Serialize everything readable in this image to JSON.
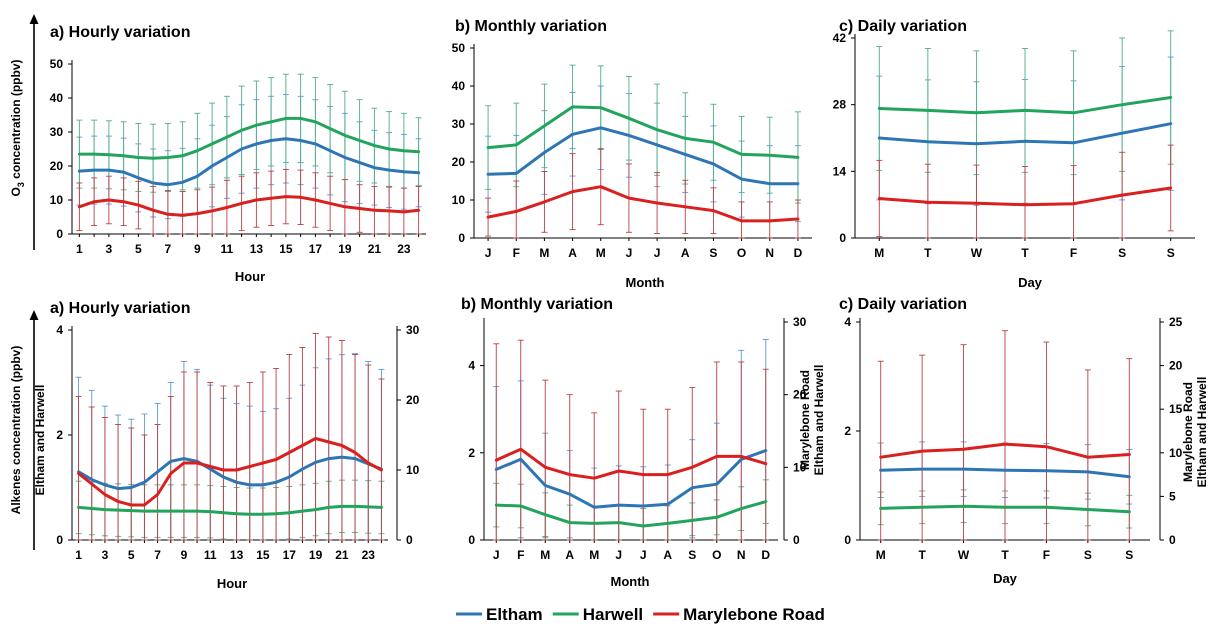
{
  "colors": {
    "Eltham": "#2e75b6",
    "Harwell": "#22a45c",
    "Marylebone Road": "#d9201f",
    "err_Eltham": "#5b9bd5",
    "err_Harwell": "#4fae86",
    "err_Marylebone Road": "#b94040"
  },
  "legend": {
    "placement": "bottom-center",
    "items": [
      "Eltham",
      "Harwell",
      "Marylebone Road"
    ]
  },
  "chart_data": [
    {
      "type": "line",
      "title": "a) Hourly variation",
      "xlabel": "Hour",
      "ylabel": "O3 concentration  (ppbv)",
      "ylabel_parts": [
        "O",
        "3",
        " concentration  (ppbv)"
      ],
      "x": [
        1,
        2,
        3,
        4,
        5,
        6,
        7,
        8,
        9,
        10,
        11,
        12,
        13,
        14,
        15,
        16,
        17,
        18,
        19,
        20,
        21,
        22,
        23,
        24
      ],
      "xticks": [
        "1",
        "3",
        "5",
        "7",
        "9",
        "11",
        "13",
        "15",
        "17",
        "19",
        "21",
        "23"
      ],
      "ylim": [
        0,
        50
      ],
      "yticks": [
        "0",
        "10",
        "20",
        "30",
        "40",
        "50"
      ],
      "series": [
        {
          "name": "Eltham",
          "axis": "left",
          "values": [
            18.5,
            18.8,
            18.8,
            18.2,
            16.5,
            15,
            14.5,
            15.2,
            17,
            20,
            22.5,
            25,
            26.5,
            27.5,
            28,
            27.5,
            26.5,
            24.5,
            22.5,
            21,
            19.5,
            18.8,
            18.3,
            18
          ],
          "err": [
            10,
            10,
            10,
            10,
            10,
            10,
            10,
            10,
            11,
            12,
            12,
            13,
            13,
            13,
            13,
            13,
            13,
            13,
            13,
            12,
            11,
            11,
            11,
            10
          ]
        },
        {
          "name": "Harwell",
          "axis": "left",
          "values": [
            23.5,
            23.5,
            23.3,
            23,
            22.5,
            22.3,
            22.5,
            23,
            24.5,
            26.5,
            28.5,
            30.5,
            32,
            33,
            34,
            34,
            33,
            31,
            29,
            27.5,
            26,
            25,
            24.5,
            24.2
          ],
          "err": [
            10,
            10,
            10,
            10,
            10,
            10,
            10,
            10,
            11,
            12,
            12,
            13,
            13,
            13,
            13,
            13,
            13,
            13,
            13,
            12,
            11,
            11,
            11,
            10
          ]
        },
        {
          "name": "Marylebone Road",
          "axis": "left",
          "values": [
            8,
            9.5,
            10,
            9.5,
            8.5,
            7,
            5.8,
            5.5,
            6,
            6.8,
            7.8,
            9,
            10,
            10.5,
            11,
            10.8,
            10,
            9,
            8,
            7.5,
            7,
            6.8,
            6.5,
            7
          ],
          "err": [
            7,
            7,
            7,
            7,
            7,
            7,
            7,
            7,
            7,
            7,
            8,
            8,
            8,
            8,
            8,
            8,
            8,
            8,
            8,
            7,
            7,
            7,
            7,
            7
          ]
        }
      ]
    },
    {
      "type": "line",
      "title": "b) Monthly variation",
      "xlabel": "Month",
      "ylabel": "",
      "x": [
        "J",
        "F",
        "M",
        "A",
        "M",
        "J",
        "J",
        "A",
        "S",
        "O",
        "N",
        "D"
      ],
      "xticks": [
        "J",
        "F",
        "M",
        "A",
        "M",
        "J",
        "J",
        "A",
        "S",
        "O",
        "N",
        "D"
      ],
      "ylim": [
        0,
        50
      ],
      "yticks": [
        "0",
        "10",
        "20",
        "30",
        "40",
        "50"
      ],
      "series": [
        {
          "name": "Eltham",
          "axis": "left",
          "values": [
            16.8,
            17,
            22.5,
            27.3,
            29,
            27,
            24.5,
            22,
            19.5,
            15.5,
            14.3,
            14.3
          ],
          "err": [
            10,
            10,
            11,
            11,
            11,
            11,
            11,
            10,
            10,
            10,
            10,
            10
          ]
        },
        {
          "name": "Harwell",
          "axis": "left",
          "values": [
            23.8,
            24.5,
            29.5,
            34.5,
            34.3,
            31.5,
            28.5,
            26.2,
            25.2,
            22,
            21.8,
            21.2
          ],
          "err": [
            11,
            11,
            11,
            11,
            11,
            11,
            12,
            12,
            10,
            10,
            10,
            12
          ]
        },
        {
          "name": "Marylebone Road",
          "axis": "left",
          "values": [
            5.5,
            7,
            9.5,
            12.2,
            13.5,
            10.5,
            9.2,
            8.2,
            7.2,
            4.5,
            4.5,
            5
          ],
          "err": [
            5,
            8,
            8,
            10,
            10,
            9,
            8,
            7,
            6,
            5,
            5,
            5
          ]
        }
      ]
    },
    {
      "type": "line",
      "title": "c) Daily variation",
      "xlabel": "Day",
      "ylabel": "",
      "x": [
        "M",
        "T",
        "W",
        "T",
        "F",
        "S",
        "S"
      ],
      "xticks": [
        "M",
        "T",
        "W",
        "T",
        "F",
        "S",
        "S"
      ],
      "ylim": [
        0,
        42
      ],
      "yticks": [
        "0",
        "14",
        "28",
        "42"
      ],
      "series": [
        {
          "name": "Eltham",
          "axis": "left",
          "values": [
            21,
            20.2,
            19.8,
            20.3,
            20,
            22,
            24
          ],
          "err": [
            13,
            13,
            13,
            13,
            13,
            14,
            14
          ]
        },
        {
          "name": "Harwell",
          "axis": "left",
          "values": [
            27.2,
            26.8,
            26.3,
            26.8,
            26.3,
            28,
            29.5
          ],
          "err": [
            13,
            13,
            13,
            13,
            13,
            14,
            14
          ]
        },
        {
          "name": "Marylebone Road",
          "axis": "left",
          "values": [
            8.3,
            7.5,
            7.3,
            7,
            7.2,
            9,
            10.5
          ],
          "err": [
            8,
            8,
            8,
            8,
            8,
            9,
            9
          ]
        }
      ]
    },
    {
      "type": "line",
      "title": "a) Hourly variation",
      "xlabel": "Hour",
      "ylabel": "Alkenes concentration  (ppbv)",
      "ylabel2": "Eltham and Harwell",
      "x": [
        1,
        2,
        3,
        4,
        5,
        6,
        7,
        8,
        9,
        10,
        11,
        12,
        13,
        14,
        15,
        16,
        17,
        18,
        19,
        20,
        21,
        22,
        23,
        24
      ],
      "xticks": [
        "1",
        "3",
        "5",
        "7",
        "9",
        "11",
        "13",
        "15",
        "17",
        "19",
        "21",
        "23"
      ],
      "ylim": [
        0,
        4
      ],
      "yticks": [
        "0",
        "2",
        "4"
      ],
      "ylim_right": [
        0,
        30
      ],
      "yticks_right": [
        "0",
        "10",
        "20",
        "30"
      ],
      "series": [
        {
          "name": "Eltham",
          "axis": "left",
          "values": [
            1.3,
            1.15,
            1.05,
            0.98,
            1,
            1.1,
            1.3,
            1.5,
            1.55,
            1.5,
            1.35,
            1.2,
            1.1,
            1.05,
            1.05,
            1.1,
            1.2,
            1.35,
            1.48,
            1.55,
            1.58,
            1.55,
            1.45,
            1.35
          ],
          "err": [
            1.8,
            1.7,
            1.5,
            1.4,
            1.3,
            1.3,
            1.3,
            1.5,
            1.85,
            1.75,
            1.6,
            1.5,
            1.5,
            1.5,
            1.4,
            1.4,
            1.5,
            1.6,
            1.8,
            1.9,
            1.95,
            2,
            1.95,
            1.9
          ]
        },
        {
          "name": "Harwell",
          "axis": "left",
          "values": [
            0.62,
            0.6,
            0.58,
            0.57,
            0.56,
            0.55,
            0.55,
            0.55,
            0.55,
            0.55,
            0.54,
            0.52,
            0.5,
            0.49,
            0.49,
            0.5,
            0.52,
            0.55,
            0.58,
            0.62,
            0.64,
            0.64,
            0.63,
            0.62
          ],
          "err": [
            0.5,
            0.5,
            0.5,
            0.5,
            0.5,
            0.5,
            0.5,
            0.5,
            0.5,
            0.5,
            0.5,
            0.5,
            0.5,
            0.5,
            0.5,
            0.5,
            0.5,
            0.5,
            0.5,
            0.5,
            0.5,
            0.5,
            0.5,
            0.5
          ]
        },
        {
          "name": "Marylebone Road",
          "axis": "right",
          "values": [
            9.5,
            8,
            6.5,
            5.5,
            5,
            5,
            6.5,
            9.5,
            11,
            11,
            10.5,
            10,
            10,
            10.5,
            11,
            11.5,
            12.5,
            13.5,
            14.5,
            14,
            13.5,
            12.5,
            11,
            10
          ],
          "err": [
            11,
            11,
            11,
            11,
            11,
            10,
            10,
            11,
            13,
            13,
            12,
            12,
            12,
            12,
            13,
            13,
            14,
            14,
            15,
            15,
            15,
            14,
            14,
            13
          ]
        }
      ]
    },
    {
      "type": "line",
      "title": "b) Monthly variation",
      "xlabel": "Month",
      "ylabel": "Eltham and Harwell",
      "ylabel_right": "Marylebone Road",
      "x": [
        "J",
        "F",
        "M",
        "A",
        "M",
        "J",
        "J",
        "A",
        "S",
        "O",
        "N",
        "D"
      ],
      "xticks": [
        "J",
        "F",
        "M",
        "A",
        "M",
        "J",
        "J",
        "A",
        "S",
        "O",
        "N",
        "D"
      ],
      "ylim": [
        0,
        5
      ],
      "yticks": [
        "0",
        "2",
        "4"
      ],
      "ylim_right": [
        0,
        30
      ],
      "yticks_right": [
        "0",
        "10",
        "20",
        "30"
      ],
      "series": [
        {
          "name": "Eltham",
          "axis": "left",
          "values": [
            1.62,
            1.85,
            1.25,
            1.05,
            0.75,
            0.8,
            0.78,
            0.82,
            1.2,
            1.28,
            1.85,
            2.05
          ],
          "err": [
            1.9,
            1.8,
            1.2,
            1,
            0.9,
            0.9,
            0.9,
            0.9,
            1.1,
            1.4,
            2.5,
            2.55
          ]
        },
        {
          "name": "Harwell",
          "axis": "left",
          "values": [
            0.8,
            0.78,
            0.58,
            0.4,
            0.38,
            0.4,
            0.32,
            0.38,
            0.45,
            0.52,
            0.72,
            0.88
          ],
          "err": [
            0.5,
            0.5,
            0.5,
            0.4,
            0.4,
            0.4,
            0.4,
            0.4,
            0.4,
            0.4,
            0.5,
            0.5
          ]
        },
        {
          "name": "Marylebone Road",
          "axis": "right",
          "values": [
            11,
            12.5,
            10,
            9,
            8.5,
            9.5,
            9,
            9,
            10,
            11.5,
            11.5,
            10.5
          ],
          "err": [
            16,
            15,
            12,
            11,
            9,
            11,
            9,
            9,
            11,
            13,
            13,
            13
          ]
        }
      ]
    },
    {
      "type": "line",
      "title": "c) Daily variation",
      "xlabel": "Day",
      "ylabel": "Eltham and Harwell",
      "ylabel_right": "Marylebone Road",
      "x": [
        "M",
        "T",
        "W",
        "T",
        "F",
        "S",
        "S"
      ],
      "xticks": [
        "M",
        "T",
        "W",
        "T",
        "F",
        "S",
        "S"
      ],
      "ylim": [
        0,
        4
      ],
      "yticks": [
        "0",
        "2",
        "4"
      ],
      "ylim_right": [
        0,
        25
      ],
      "yticks_right": [
        "0",
        "5",
        "10",
        "15",
        "20",
        "25"
      ],
      "series": [
        {
          "name": "Eltham",
          "axis": "left",
          "values": [
            1.28,
            1.3,
            1.3,
            1.28,
            1.27,
            1.25,
            1.16
          ],
          "err": [
            0.5,
            0.5,
            0.5,
            0.5,
            0.5,
            0.5,
            0.5
          ]
        },
        {
          "name": "Harwell",
          "axis": "left",
          "values": [
            0.58,
            0.6,
            0.62,
            0.6,
            0.6,
            0.56,
            0.52
          ],
          "err": [
            0.3,
            0.3,
            0.3,
            0.3,
            0.3,
            0.3,
            0.3
          ]
        },
        {
          "name": "Marylebone Road",
          "axis": "right",
          "values": [
            9.5,
            10.2,
            10.4,
            11,
            10.7,
            9.5,
            9.8
          ],
          "err": [
            11,
            11,
            12,
            13,
            12,
            10,
            11
          ]
        }
      ]
    }
  ]
}
